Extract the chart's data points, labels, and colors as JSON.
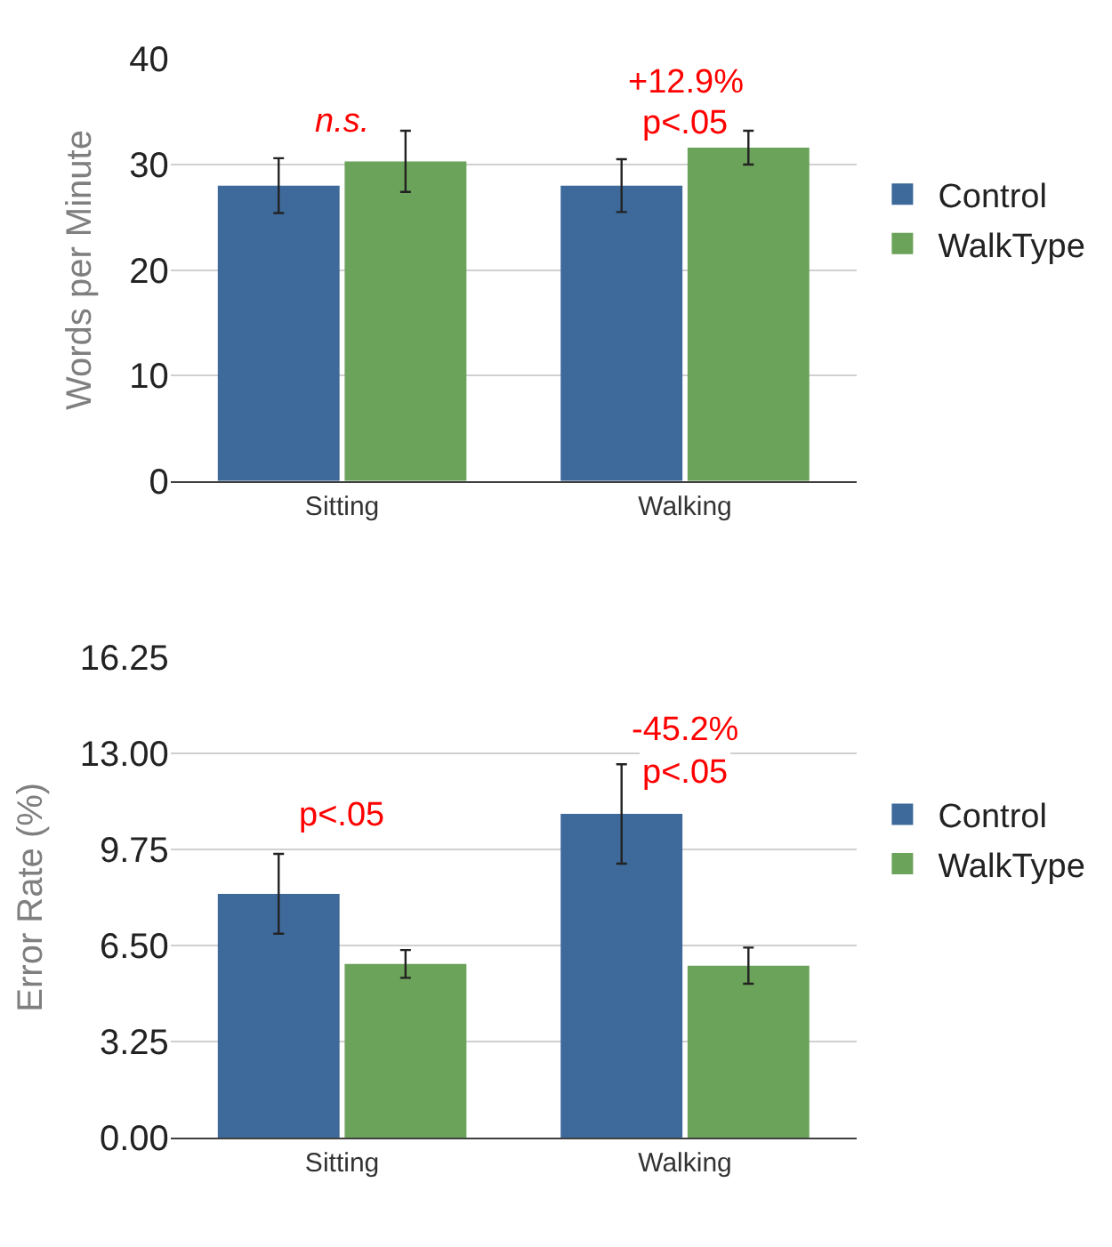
{
  "chart_data": [
    {
      "type": "bar",
      "ylabel": "Words per Minute",
      "categories": [
        "Sitting",
        "Walking"
      ],
      "series": [
        {
          "name": "Control",
          "color": "#3d6a9b",
          "values": [
            28.0,
            28.0
          ],
          "errors": [
            2.6,
            2.5
          ]
        },
        {
          "name": "WalkType",
          "color": "#6ca35a",
          "values": [
            30.3,
            31.6
          ],
          "errors": [
            2.9,
            1.6
          ]
        }
      ],
      "ylim": [
        0,
        40
      ],
      "yticks": [
        0,
        10,
        20,
        30,
        40
      ],
      "grid": "y",
      "legend": "right",
      "annotations": [
        "n.s.",
        "+12.9%",
        "p<.05"
      ]
    },
    {
      "type": "bar",
      "ylabel": "Error Rate (%)",
      "categories": [
        "Sitting",
        "Walking"
      ],
      "series": [
        {
          "name": "Control",
          "color": "#3d6a9b",
          "values": [
            8.24,
            10.94
          ],
          "errors": [
            1.35,
            1.68
          ]
        },
        {
          "name": "WalkType",
          "color": "#6ca35a",
          "values": [
            5.87,
            5.81
          ],
          "errors": [
            0.47,
            0.61
          ]
        }
      ],
      "ylim": [
        0,
        16.25
      ],
      "yticks": [
        {
          "value": 0,
          "label": "0.00"
        },
        3.25,
        {
          "value": 6.5,
          "label": "6.50"
        },
        9.75,
        {
          "value": 13,
          "label": "13.00"
        },
        16.25
      ],
      "grid": "y",
      "legend": "right",
      "annotations": [
        "p<.05",
        "-45.2%",
        "p<.05"
      ]
    }
  ]
}
